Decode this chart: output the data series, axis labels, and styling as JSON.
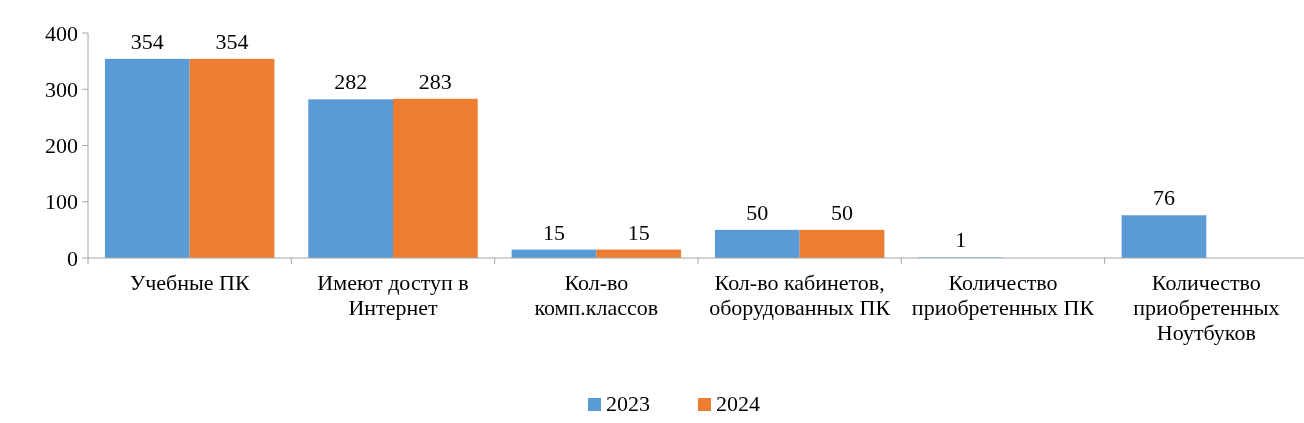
{
  "chart_data": {
    "type": "bar",
    "categories": [
      "Учебные ПК",
      "Имеют доступ в Интернет",
      "Кол-во комп.классов",
      "Кол-во кабинетов, оборудованных ПК",
      "Количество приобретенных ПК",
      "Количество приобретенных Ноутбуков"
    ],
    "series": [
      {
        "name": "2023",
        "color": "#5b9bd5",
        "values": [
          354,
          282,
          15,
          50,
          1,
          76
        ]
      },
      {
        "name": "2024",
        "color": "#ed7d31",
        "values": [
          354,
          283,
          15,
          50,
          null,
          null
        ]
      }
    ],
    "ylim": [
      0,
      400
    ],
    "yticks": [
      0,
      100,
      200,
      300,
      400
    ],
    "data_labels": true,
    "legend": "bottom",
    "grid": false
  }
}
